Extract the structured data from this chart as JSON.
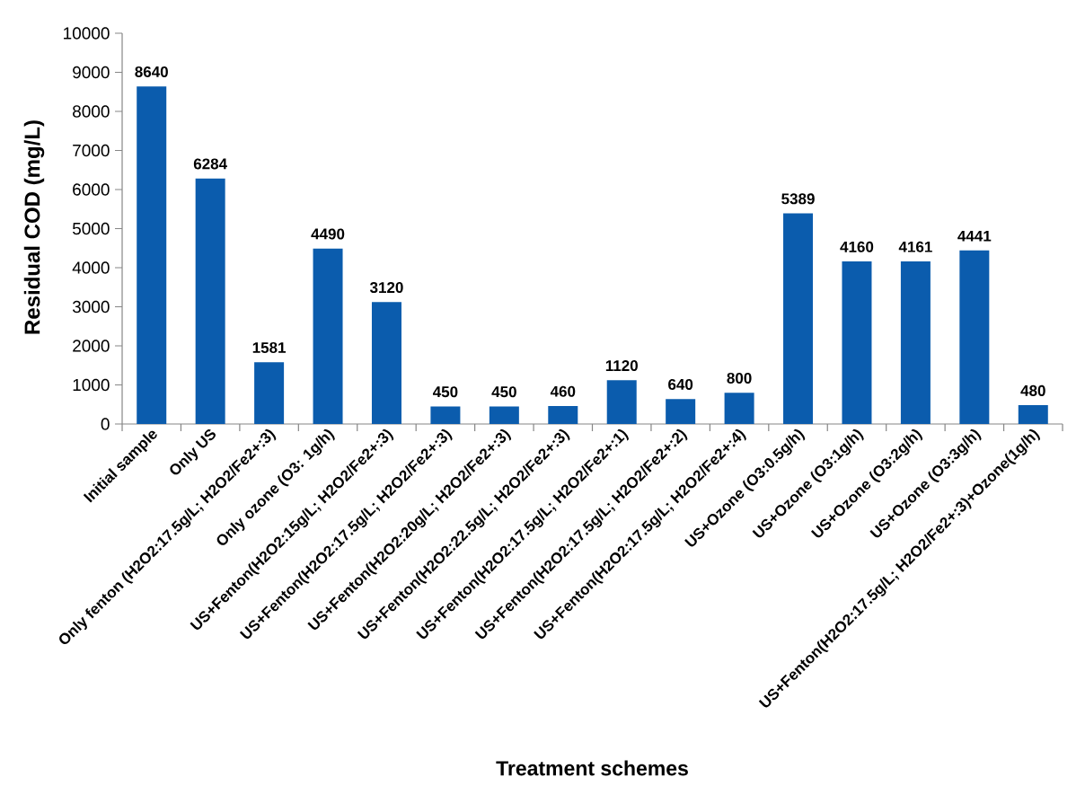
{
  "chart_data": {
    "type": "bar",
    "xlabel": "Treatment schemes",
    "ylabel": "Residual COD (mg/L)",
    "categories": [
      "Initial sample",
      "Only US",
      "Only fenton (H2O2:17.5g/L; H2O2/Fe2+:3)",
      "Only ozone (O3: 1g/h)",
      "US+Fenton(H2O2:15g/L; H2O2/Fe2+:3)",
      "US+Fenton(H2O2:17.5g/L; H2O2/Fe2+:3)",
      "US+Fenton(H2O2:20g/L; H2O2/Fe2+:3)",
      "US+Fenton(H2O2:22.5g/L; H2O2/Fe2+:3)",
      "US+Fenton(H2O2:17.5g/L; H2O2/Fe2+:1)",
      "US+Fenton(H2O2:17.5g/L; H2O2/Fe2+:2)",
      "US+Fenton(H2O2:17.5g/L; H2O2/Fe2+:4)",
      "US+Ozone (O3:0.5g/h)",
      "US+Ozone (O3:1g/h)",
      "US+Ozone (O3:2g/h)",
      "US+Ozone (O3:3g/h)",
      "US+Fenton(H2O2:17.5g/L; H2O2/Fe2+:3)+Ozone(1g/h)"
    ],
    "values": [
      8640,
      6284,
      1581,
      4490,
      3120,
      450,
      450,
      460,
      1120,
      640,
      800,
      5389,
      4160,
      4161,
      4441,
      480
    ],
    "color": "#0b5cad",
    "ylim": [
      0,
      10000
    ],
    "yticks": [
      0,
      1000,
      2000,
      3000,
      4000,
      5000,
      6000,
      7000,
      8000,
      9000,
      10000
    ],
    "data_labels": true
  }
}
